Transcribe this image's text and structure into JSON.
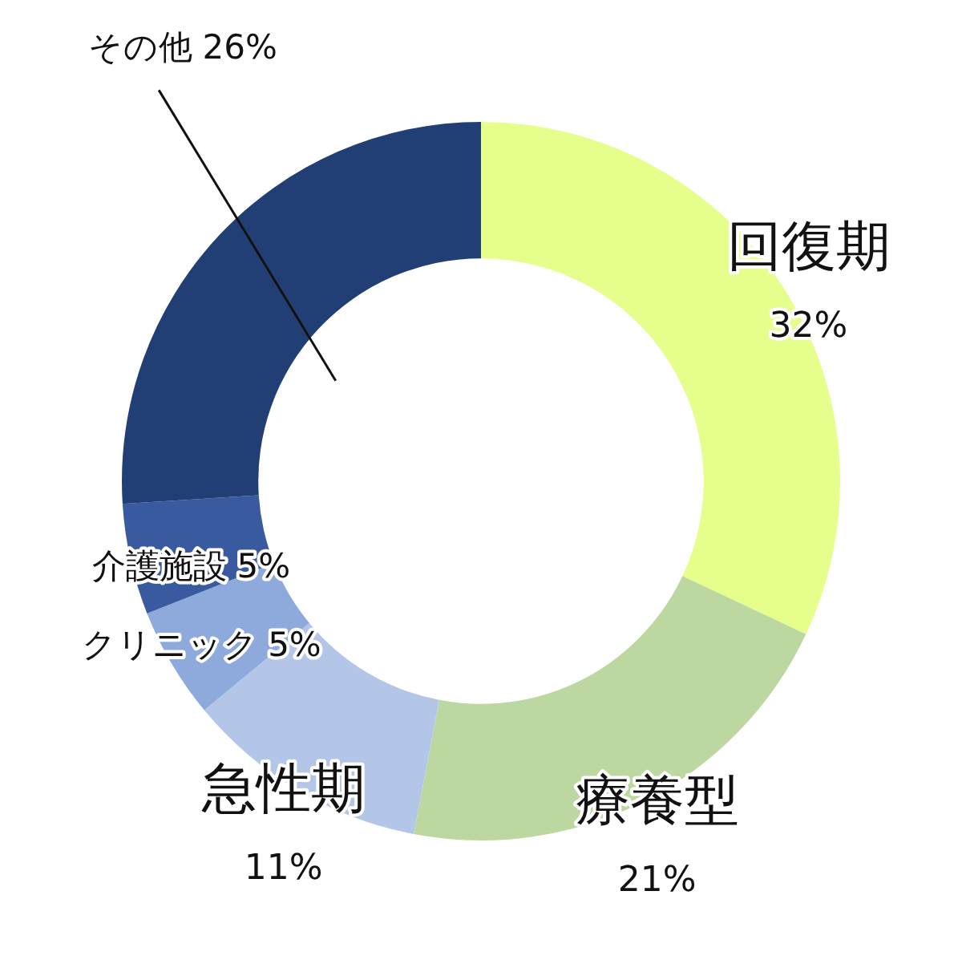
{
  "chart_data": {
    "type": "donut",
    "categories": [
      "回復期",
      "療養型",
      "急性期",
      "クリニック",
      "介護施設",
      "その他"
    ],
    "values": [
      32,
      21,
      11,
      5,
      5,
      26
    ],
    "colors": [
      "#e6ff8c",
      "#bdd7a0",
      "#b4c6e7",
      "#8ea9db",
      "#3a5aa0",
      "#223f75"
    ],
    "value_labels": [
      "32%",
      "21%",
      "11%",
      "5%",
      "5%",
      "26%"
    ],
    "legend": false
  }
}
